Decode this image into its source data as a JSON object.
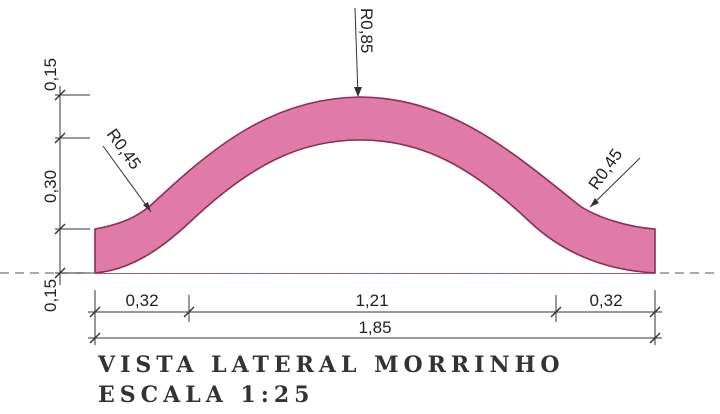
{
  "drawing": {
    "shape_fill": "#e07aa6",
    "shape_stroke": "#8a2f55",
    "line_color": "#333333",
    "radius_labels": {
      "left": "R0,45",
      "center": "R0,85",
      "right": "R0,45"
    },
    "vertical_dims": {
      "top": "0,15",
      "middle": "0,30",
      "bottom": "0,15"
    },
    "horizontal_dims": {
      "left": "0,32",
      "center": "1,21",
      "right": "0,32",
      "total": "1,85"
    }
  },
  "titles": {
    "line1": "VISTA LATERAL MORRINHO",
    "line2": "ESCALA 1:25"
  }
}
